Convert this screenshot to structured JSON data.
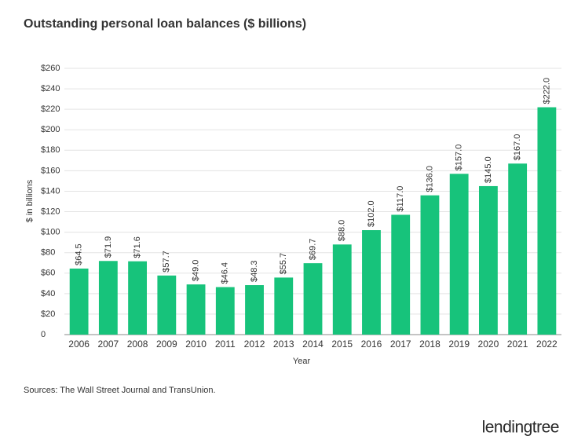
{
  "chart_data": {
    "type": "bar",
    "title": "Outstanding personal loan balances ($ billions)",
    "y_label": "$ in billions",
    "x_label": "Year",
    "categories": [
      "2006",
      "2007",
      "2008",
      "2009",
      "2010",
      "2011",
      "2012",
      "2013",
      "2014",
      "2015",
      "2016",
      "2017",
      "2018",
      "2019",
      "2020",
      "2021",
      "2022"
    ],
    "values": [
      64.5,
      71.9,
      71.6,
      57.7,
      49.0,
      46.4,
      48.3,
      55.7,
      69.7,
      88.0,
      102.0,
      117.0,
      136.0,
      157.0,
      145.0,
      167.0,
      222.0
    ],
    "value_labels": [
      "$64.5",
      "$71.9",
      "$71.6",
      "$57.7",
      "$49.0",
      "$46.4",
      "$48.3",
      "$55.7",
      "$69.7",
      "$88.0",
      "$102.0",
      "$117.0",
      "$136.0",
      "$157.0",
      "$145.0",
      "$167.0",
      "$222.0"
    ],
    "color": "#17c37b",
    "ylim": [
      0,
      260
    ],
    "yticks": [
      0,
      {
        "value": 20,
        "label": "$20"
      },
      {
        "value": 40,
        "label": "$40"
      },
      {
        "value": 60,
        "label": "$60"
      },
      {
        "value": 80,
        "label": "$80"
      },
      {
        "value": 100,
        "label": "$100"
      },
      {
        "value": 120,
        "label": "$120"
      },
      {
        "value": 140,
        "label": "$140"
      },
      {
        "value": 160,
        "label": "$160"
      },
      {
        "value": 180,
        "label": "$180"
      },
      {
        "value": 200,
        "label": "$200"
      },
      {
        "value": 220,
        "label": "$220"
      },
      {
        "value": 240,
        "label": "$240"
      },
      {
        "value": 260,
        "label": "$260"
      }
    ],
    "grid": true,
    "source": "Sources: The Wall Street Journal and TransUnion.",
    "logo": "lendingtree"
  }
}
